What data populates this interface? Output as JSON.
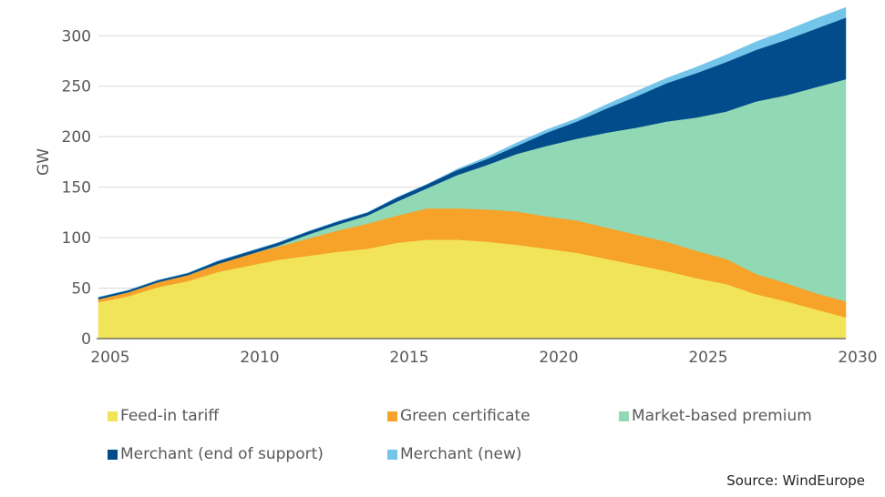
{
  "chart_data": {
    "type": "area",
    "stacked": true,
    "ylabel": "GW",
    "xlabel": "",
    "xlim": [
      2005,
      2030
    ],
    "ylim": [
      0,
      330
    ],
    "x_ticks": [
      2005,
      2010,
      2015,
      2020,
      2025,
      2030
    ],
    "y_ticks": [
      0,
      50,
      100,
      150,
      200,
      250,
      300
    ],
    "grid": "horizontal",
    "legend_position": "bottom",
    "x": [
      2005,
      2006,
      2007,
      2008,
      2009,
      2010,
      2011,
      2012,
      2013,
      2014,
      2015,
      2016,
      2017,
      2018,
      2019,
      2020,
      2021,
      2022,
      2023,
      2024,
      2025,
      2026,
      2027,
      2028,
      2029,
      2030
    ],
    "series": [
      {
        "name": "Feed-in tariff",
        "color": "#f2e459",
        "values": [
          36,
          42,
          51,
          57,
          66,
          72,
          78,
          82,
          86,
          89,
          95,
          98,
          98,
          96,
          93,
          89,
          85,
          79,
          73,
          67,
          60,
          54,
          44,
          37,
          29,
          21
        ]
      },
      {
        "name": "Green certificate",
        "color": "#f7a229",
        "values": [
          3,
          4,
          5,
          6,
          8,
          11,
          13,
          17,
          21,
          25,
          27,
          31,
          31,
          32,
          33,
          32,
          32,
          31,
          30,
          29,
          27,
          25,
          20,
          18,
          16,
          16
        ]
      },
      {
        "name": "Market-based premium",
        "color": "#91d8b5",
        "values": [
          0,
          0,
          0,
          0,
          0,
          0,
          1,
          4,
          6,
          8,
          14,
          20,
          33,
          44,
          57,
          70,
          81,
          94,
          106,
          119,
          132,
          146,
          171,
          186,
          204,
          220
        ]
      },
      {
        "name": "Merchant (end of support)",
        "color": "#034c8c",
        "values": [
          2,
          2,
          2,
          2,
          3,
          3,
          3,
          3,
          3,
          3,
          4,
          4,
          5,
          6,
          8,
          13,
          17,
          24,
          31,
          38,
          44,
          49,
          51,
          55,
          58,
          61
        ]
      },
      {
        "name": "Merchant (new)",
        "color": "#74c5ea",
        "values": [
          0,
          0,
          0,
          0,
          0,
          0,
          0,
          0,
          0,
          0,
          0,
          0,
          1,
          2,
          3,
          3,
          3,
          4,
          5,
          5,
          6,
          7,
          8,
          9,
          10,
          10
        ]
      }
    ]
  },
  "source": "Source: WindEurope"
}
